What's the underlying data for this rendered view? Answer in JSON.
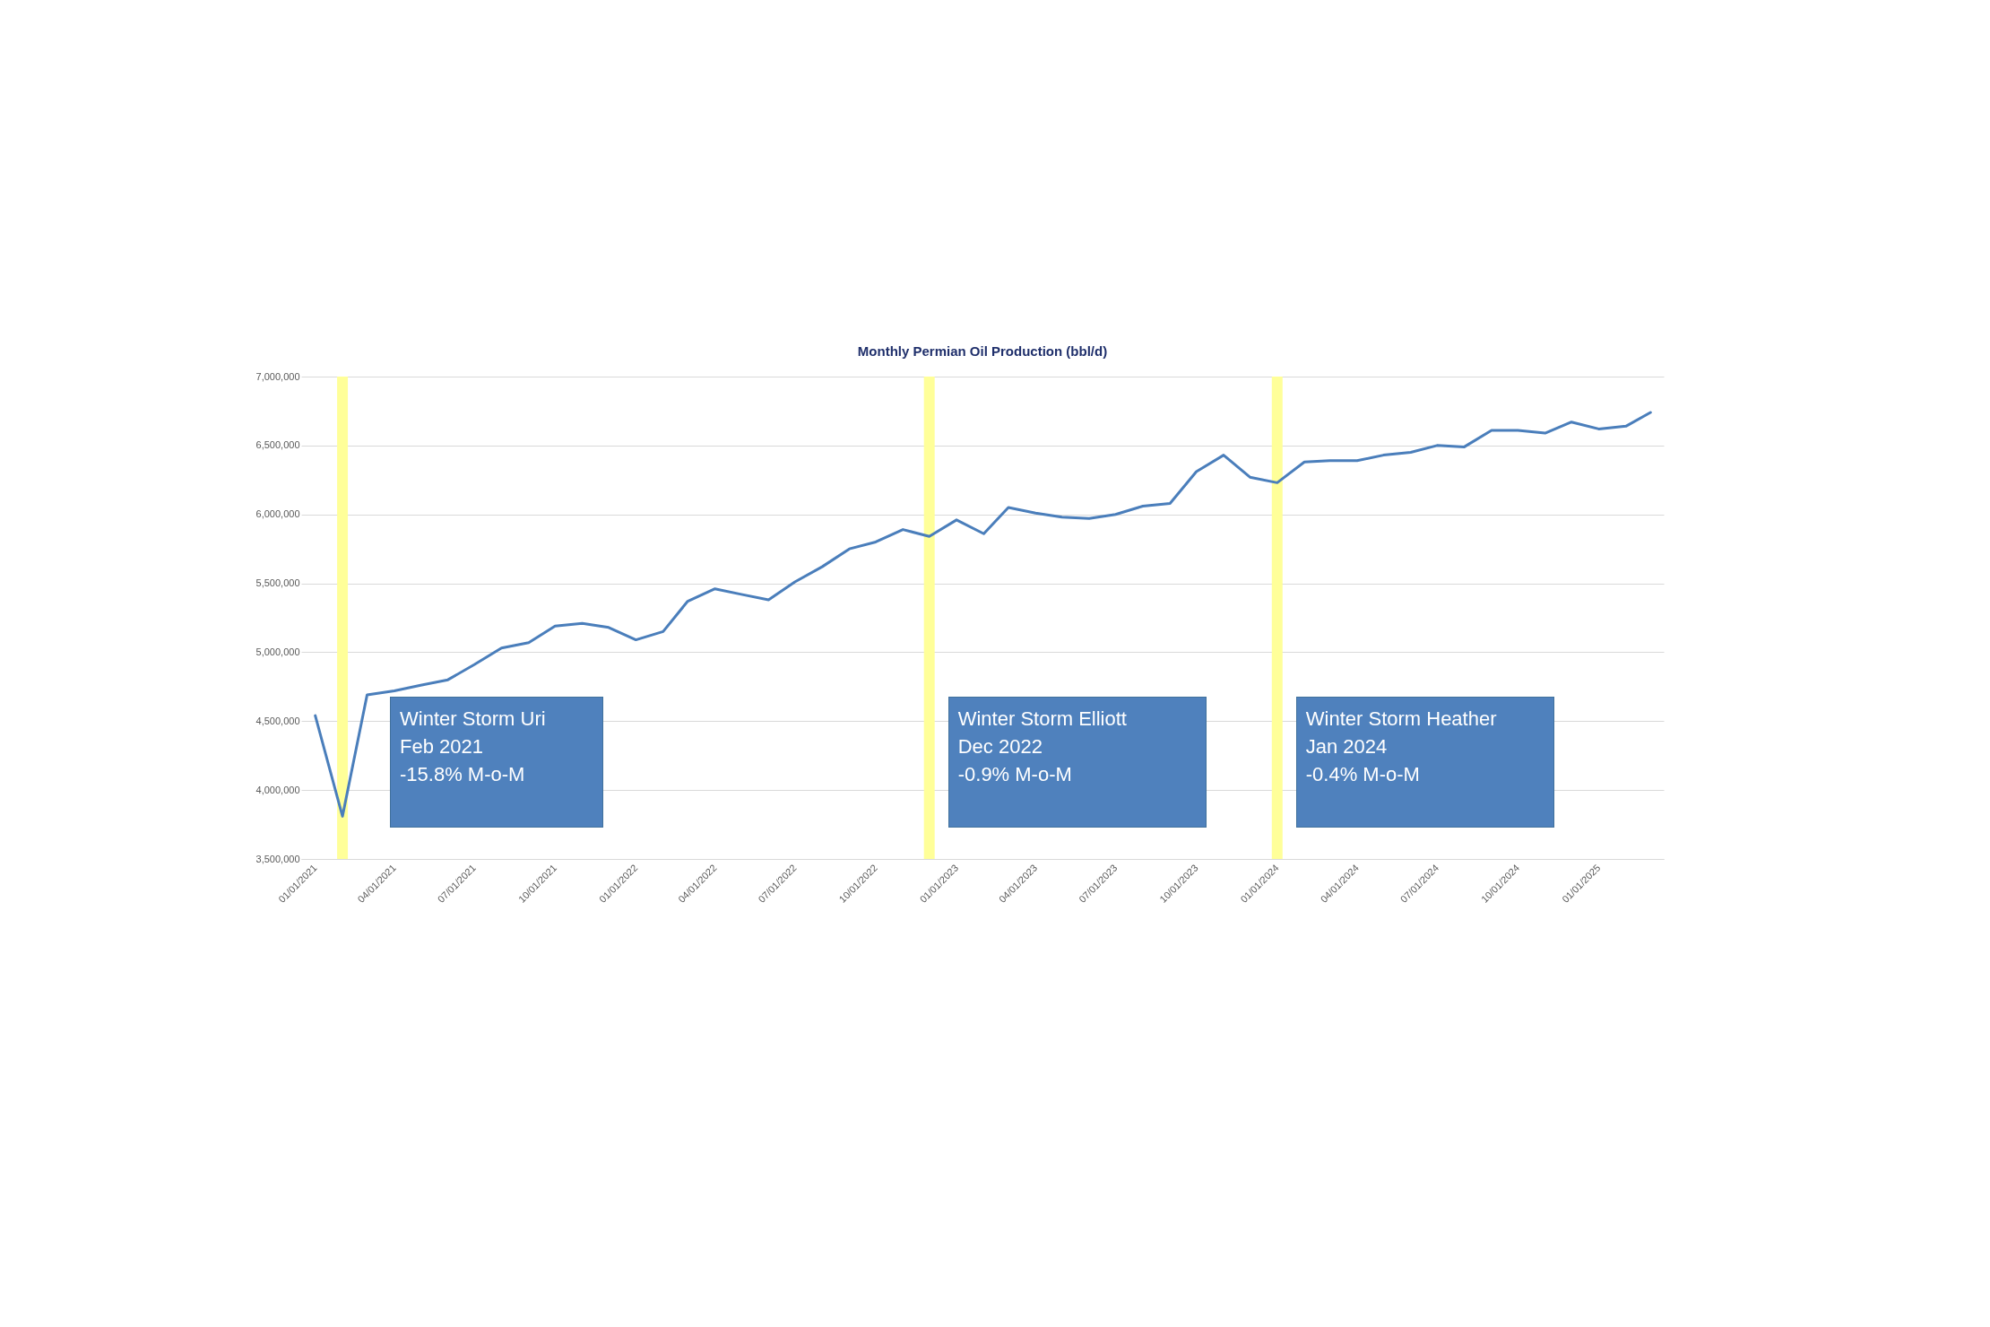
{
  "chart_data": {
    "type": "line",
    "title": "Monthly Permian Oil Production (bbl/d)",
    "x": [
      "2021-01",
      "2021-02",
      "2021-03",
      "2021-04",
      "2021-05",
      "2021-06",
      "2021-07",
      "2021-08",
      "2021-09",
      "2021-10",
      "2021-11",
      "2021-12",
      "2022-01",
      "2022-02",
      "2022-03",
      "2022-04",
      "2022-05",
      "2022-06",
      "2022-07",
      "2022-08",
      "2022-09",
      "2022-10",
      "2022-11",
      "2022-12",
      "2023-01",
      "2023-02",
      "2023-03",
      "2023-04",
      "2023-05",
      "2023-06",
      "2023-07",
      "2023-08",
      "2023-09",
      "2023-10",
      "2023-11",
      "2023-12",
      "2024-01",
      "2024-02",
      "2024-03",
      "2024-04",
      "2024-05",
      "2024-06",
      "2024-07",
      "2024-08",
      "2024-09",
      "2024-10",
      "2024-11",
      "2024-12",
      "2025-01",
      "2025-02",
      "2025-03"
    ],
    "series": [
      {
        "color": "#4a7ebb",
        "values": [
          4540000,
          3810000,
          4690000,
          4720000,
          4760000,
          4800000,
          4910000,
          5030000,
          5070000,
          5190000,
          5210000,
          5180000,
          5090000,
          5150000,
          5370000,
          5460000,
          5420000,
          5380000,
          5510000,
          5620000,
          5750000,
          5800000,
          5890000,
          5840000,
          5960000,
          5860000,
          6050000,
          6010000,
          5980000,
          5970000,
          6000000,
          6060000,
          6080000,
          6310000,
          6430000,
          6270000,
          6230000,
          6380000,
          6390000,
          6390000,
          6430000,
          6450000,
          6500000,
          6490000,
          6610000,
          6610000,
          6590000,
          6670000,
          6620000,
          6640000,
          6740000
        ]
      }
    ],
    "xlim": [
      "2020-12-16",
      "2025-03-16"
    ],
    "xticks": [
      {
        "value": "2021-01-01",
        "label": "01/01/2021"
      },
      {
        "value": "2021-04-01",
        "label": "04/01/2021"
      },
      {
        "value": "2021-07-01",
        "label": "07/01/2021"
      },
      {
        "value": "2021-10-01",
        "label": "10/01/2021"
      },
      {
        "value": "2022-01-01",
        "label": "01/01/2022"
      },
      {
        "value": "2022-04-01",
        "label": "04/01/2022"
      },
      {
        "value": "2022-07-01",
        "label": "07/01/2022"
      },
      {
        "value": "2022-10-01",
        "label": "10/01/2022"
      },
      {
        "value": "2023-01-01",
        "label": "01/01/2023"
      },
      {
        "value": "2023-04-01",
        "label": "04/01/2023"
      },
      {
        "value": "2023-07-01",
        "label": "07/01/2023"
      },
      {
        "value": "2023-10-01",
        "label": "10/01/2023"
      },
      {
        "value": "2024-01-01",
        "label": "01/01/2024"
      },
      {
        "value": "2024-04-01",
        "label": "04/01/2024"
      },
      {
        "value": "2024-07-01",
        "label": "07/01/2024"
      },
      {
        "value": "2024-10-01",
        "label": "10/01/2024"
      },
      {
        "value": "2025-01-01",
        "label": "01/01/2025"
      }
    ],
    "ylim": [
      3500000,
      7000000
    ],
    "yticks": [
      {
        "value": 3500000,
        "label": "3,500,000"
      },
      {
        "value": 4000000,
        "label": "4,000,000"
      },
      {
        "value": 4500000,
        "label": "4,500,000"
      },
      {
        "value": 5000000,
        "label": "5,000,000"
      },
      {
        "value": 5500000,
        "label": "5,500,000"
      },
      {
        "value": 6000000,
        "label": "6,000,000"
      },
      {
        "value": 6500000,
        "label": "6,500,000"
      },
      {
        "value": 7000000,
        "label": "7,000,000"
      }
    ],
    "grid": "y",
    "marker": "none",
    "line_style": "solid",
    "ref_lines": [
      {
        "axis": "x",
        "value": "2021-02",
        "color": "#ffff99"
      },
      {
        "axis": "x",
        "value": "2022-12",
        "color": "#ffff99"
      },
      {
        "axis": "x",
        "value": "2024-01",
        "color": "#ffff99"
      }
    ],
    "annotations": [
      "Winter Storm Uri\nFeb 2021\n-15.8% M-o-M",
      "Winter Storm Elliott\nDec 2022\n-0.9% M-o-M",
      "Winter Storm Heather\nJan 2024\n-0.4% M-o-M"
    ]
  }
}
